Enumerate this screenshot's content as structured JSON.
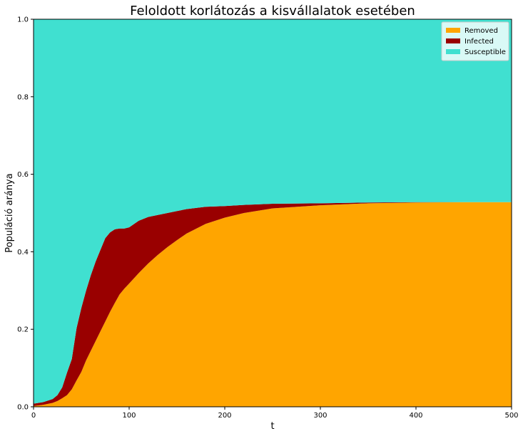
{
  "chart_data": {
    "type": "area",
    "stacked": true,
    "title": "Feloldott korlátozás a kisvállalatok esetében",
    "xlabel": "t",
    "ylabel": "Populáció aránya",
    "xlim": [
      0,
      500
    ],
    "ylim": [
      0,
      1.0
    ],
    "xticks": [
      "0",
      "100",
      "200",
      "300",
      "400",
      "500"
    ],
    "yticks": [
      "0.0",
      "0.2",
      "0.4",
      "0.6",
      "0.8",
      "1.0"
    ],
    "grid": false,
    "legend_position": "top-right",
    "x": [
      0,
      10,
      20,
      25,
      30,
      35,
      40,
      45,
      50,
      55,
      60,
      65,
      70,
      75,
      80,
      85,
      90,
      95,
      100,
      110,
      120,
      130,
      140,
      150,
      160,
      180,
      200,
      220,
      250,
      300,
      350,
      400,
      450,
      500
    ],
    "series": [
      {
        "name": "Removed",
        "color": "#ffa500",
        "values": [
          0.002,
          0.005,
          0.01,
          0.015,
          0.022,
          0.03,
          0.045,
          0.068,
          0.09,
          0.12,
          0.145,
          0.17,
          0.195,
          0.22,
          0.245,
          0.268,
          0.29,
          0.305,
          0.318,
          0.345,
          0.37,
          0.392,
          0.412,
          0.43,
          0.447,
          0.472,
          0.488,
          0.5,
          0.512,
          0.52,
          0.525,
          0.527,
          0.528,
          0.528
        ]
      },
      {
        "name": "Infected",
        "color": "#990000",
        "values": [
          0.006,
          0.007,
          0.01,
          0.015,
          0.028,
          0.058,
          0.078,
          0.135,
          0.165,
          0.18,
          0.195,
          0.205,
          0.21,
          0.215,
          0.205,
          0.19,
          0.17,
          0.155,
          0.145,
          0.135,
          0.12,
          0.103,
          0.088,
          0.075,
          0.063,
          0.044,
          0.03,
          0.021,
          0.012,
          0.005,
          0.002,
          0.001,
          0.0,
          0.0
        ]
      },
      {
        "name": "Susceptible",
        "color": "#40e0d0",
        "values": [
          0.992,
          0.988,
          0.98,
          0.97,
          0.95,
          0.912,
          0.877,
          0.797,
          0.745,
          0.7,
          0.66,
          0.625,
          0.595,
          0.565,
          0.55,
          0.542,
          0.54,
          0.54,
          0.537,
          0.52,
          0.51,
          0.505,
          0.5,
          0.495,
          0.49,
          0.484,
          0.482,
          0.479,
          0.476,
          0.475,
          0.473,
          0.472,
          0.472,
          0.472
        ]
      }
    ],
    "legend_order": [
      "Removed",
      "Infected",
      "Susceptible"
    ]
  }
}
